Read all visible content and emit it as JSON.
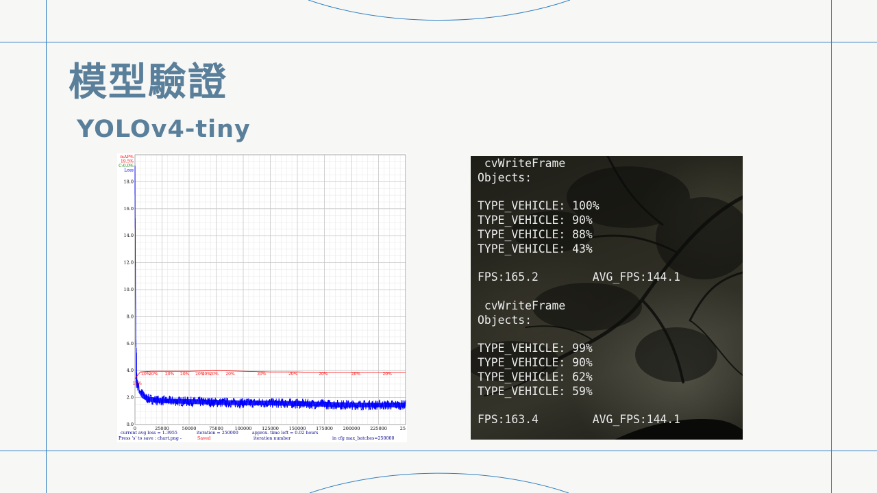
{
  "slide": {
    "title": "模型驗證",
    "subtitle": "YOLOv4-tiny"
  },
  "colors": {
    "accent": "#5a7f9a",
    "frame_lines": "#2f7fc1",
    "loss_line": "#0000ff",
    "map_line": "#ff0000"
  },
  "chart_data": {
    "type": "line",
    "legend": [
      "mAP%",
      "19.5%",
      "C:0.0%",
      "Loss"
    ],
    "legend_colors": [
      "#ff0000",
      "#ff0000",
      "#008000",
      "#0000ff"
    ],
    "y_ticks": [
      "0.0",
      "2.0",
      "4.0",
      "6.0",
      "8.0",
      "10.0",
      "12.0",
      "14.0",
      "16.0",
      "18.0"
    ],
    "ylim": [
      0,
      20
    ],
    "x_ticks": [
      "0",
      "25000",
      "50000",
      "75000",
      "100000",
      "125000",
      "150000",
      "175000",
      "200000",
      "225000",
      "25"
    ],
    "xlim": [
      0,
      250000
    ],
    "grid": true,
    "series": [
      {
        "name": "Loss",
        "x": [
          0,
          500,
          1000,
          2000,
          3000,
          5000,
          8000,
          12000,
          20000,
          30000,
          50000,
          75000,
          100000,
          125000,
          150000,
          175000,
          200000,
          225000,
          250000
        ],
        "y": [
          18.8,
          9.8,
          4.5,
          3.0,
          2.8,
          2.5,
          2.1,
          1.9,
          1.8,
          1.75,
          1.7,
          1.65,
          1.6,
          1.6,
          1.55,
          1.5,
          1.45,
          1.45,
          1.45
        ]
      },
      {
        "name": "mAP%",
        "x": [
          0,
          5000,
          15000,
          25000,
          50000,
          75000,
          100000,
          125000,
          150000,
          175000,
          200000,
          225000,
          250000
        ],
        "y": [
          3.4,
          3.9,
          3.95,
          3.95,
          3.95,
          4.0,
          3.95,
          3.9,
          3.9,
          3.85,
          3.85,
          3.85,
          3.85
        ]
      }
    ],
    "map_labels": [
      {
        "x": 2000,
        "y": 3.4,
        "text": "17%"
      },
      {
        "x": 10000,
        "y": 3.95,
        "text": "20%"
      },
      {
        "x": 17000,
        "y": 3.95,
        "text": "20%"
      },
      {
        "x": 32000,
        "y": 3.95,
        "text": "20%"
      },
      {
        "x": 46000,
        "y": 3.95,
        "text": "20%"
      },
      {
        "x": 60000,
        "y": 3.95,
        "text": "20%"
      },
      {
        "x": 66000,
        "y": 3.95,
        "text": "20%"
      },
      {
        "x": 73000,
        "y": 3.95,
        "text": "20%"
      },
      {
        "x": 88000,
        "y": 3.95,
        "text": "20%"
      },
      {
        "x": 117000,
        "y": 3.95,
        "text": "20%"
      },
      {
        "x": 146000,
        "y": 3.95,
        "text": "20%"
      },
      {
        "x": 174000,
        "y": 3.95,
        "text": "20%"
      },
      {
        "x": 204000,
        "y": 3.95,
        "text": "20%"
      },
      {
        "x": 233000,
        "y": 3.95,
        "text": "20%"
      }
    ],
    "footer": {
      "avg_loss": "current avg loss = 1.3955",
      "iteration": "iteration = 250000",
      "time_left": "approx. time left = 0.02 hours",
      "press_save": "Press 's' to save : chart.png -",
      "saved": "Saved",
      "xlabel": "iteration number",
      "max_batches": "in cfg max_batches=250000"
    }
  },
  "terminal": {
    "lines": [
      " cvWriteFrame",
      "Objects:",
      "",
      "TYPE_VEHICLE: 100%",
      "TYPE_VEHICLE: 90%",
      "TYPE_VEHICLE: 88%",
      "TYPE_VEHICLE: 43%",
      "",
      "FPS:165.2        AVG_FPS:144.1",
      "",
      " cvWriteFrame",
      "Objects:",
      "",
      "TYPE_VEHICLE: 99%",
      "TYPE_VEHICLE: 90%",
      "TYPE_VEHICLE: 62%",
      "TYPE_VEHICLE: 59%",
      "",
      "FPS:163.4        AVG_FPS:144.1"
    ]
  }
}
